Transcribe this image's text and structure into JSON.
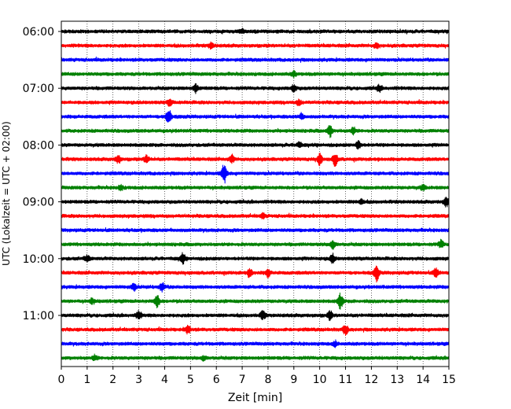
{
  "chart_data": {
    "type": "line",
    "title": "",
    "xlabel": "Zeit  [min]",
    "ylabel": "UTC (Lokalzeit = UTC + 02:00)",
    "xlim": [
      0,
      15
    ],
    "xticks": [
      0,
      1,
      2,
      3,
      4,
      5,
      6,
      7,
      8,
      9,
      10,
      11,
      12,
      13,
      14,
      15
    ],
    "grid": "vertical dotted lines at every minute",
    "legend": "none",
    "time_labels": [
      "06:00",
      "07:00",
      "08:00",
      "09:00",
      "10:00",
      "11:00"
    ],
    "trace_colors": [
      "#000000",
      "#ff0000",
      "#0000ff",
      "#008000"
    ],
    "trace_interval_minutes": 15,
    "series": [
      {
        "start": "06:00",
        "color": "#000000",
        "events": [
          {
            "x": 7.0,
            "amp": 2.5
          }
        ]
      },
      {
        "start": "06:15",
        "color": "#ff0000",
        "events": [
          {
            "x": 5.8,
            "amp": 3.5
          },
          {
            "x": 12.2,
            "amp": 3.0
          }
        ]
      },
      {
        "start": "06:30",
        "color": "#0000ff",
        "events": []
      },
      {
        "start": "06:45",
        "color": "#008000",
        "events": [
          {
            "x": 9.0,
            "amp": 3.0
          }
        ]
      },
      {
        "start": "07:00",
        "color": "#000000",
        "events": [
          {
            "x": 5.2,
            "amp": 5.0
          },
          {
            "x": 9.0,
            "amp": 4.0
          },
          {
            "x": 12.3,
            "amp": 3.5
          }
        ]
      },
      {
        "start": "07:15",
        "color": "#ff0000",
        "events": [
          {
            "x": 4.2,
            "amp": 3.5
          },
          {
            "x": 9.2,
            "amp": 3.0
          }
        ]
      },
      {
        "start": "07:30",
        "color": "#0000ff",
        "events": [
          {
            "x": 4.15,
            "amp": 10.0
          },
          {
            "x": 9.3,
            "amp": 3.0
          }
        ]
      },
      {
        "start": "07:45",
        "color": "#008000",
        "events": [
          {
            "x": 10.4,
            "amp": 7.0
          },
          {
            "x": 11.3,
            "amp": 4.0
          }
        ]
      },
      {
        "start": "08:00",
        "color": "#000000",
        "events": [
          {
            "x": 11.5,
            "amp": 5.5
          },
          {
            "x": 9.2,
            "amp": 3.0
          }
        ]
      },
      {
        "start": "08:15",
        "color": "#ff0000",
        "events": [
          {
            "x": 2.2,
            "amp": 4.5
          },
          {
            "x": 3.3,
            "amp": 4.5
          },
          {
            "x": 6.6,
            "amp": 4.5
          },
          {
            "x": 10.0,
            "amp": 7.0
          },
          {
            "x": 10.6,
            "amp": 8.0
          }
        ]
      },
      {
        "start": "08:30",
        "color": "#0000ff",
        "events": [
          {
            "x": 6.3,
            "amp": 12.0
          }
        ]
      },
      {
        "start": "08:45",
        "color": "#008000",
        "events": [
          {
            "x": 2.3,
            "amp": 3.0
          },
          {
            "x": 14.0,
            "amp": 3.0
          }
        ]
      },
      {
        "start": "09:00",
        "color": "#000000",
        "events": [
          {
            "x": 11.6,
            "amp": 3.0
          },
          {
            "x": 14.9,
            "amp": 6.0
          }
        ]
      },
      {
        "start": "09:15",
        "color": "#ff0000",
        "events": [
          {
            "x": 7.8,
            "amp": 3.0
          }
        ]
      },
      {
        "start": "09:30",
        "color": "#0000ff",
        "events": []
      },
      {
        "start": "09:45",
        "color": "#008000",
        "events": [
          {
            "x": 10.5,
            "amp": 5.0
          },
          {
            "x": 14.7,
            "amp": 4.5
          }
        ]
      },
      {
        "start": "10:00",
        "color": "#000000",
        "events": [
          {
            "x": 1.0,
            "amp": 4.0
          },
          {
            "x": 4.7,
            "amp": 6.0
          },
          {
            "x": 10.5,
            "amp": 5.0
          }
        ]
      },
      {
        "start": "10:15",
        "color": "#ff0000",
        "events": [
          {
            "x": 7.3,
            "amp": 5.0
          },
          {
            "x": 8.0,
            "amp": 4.5
          },
          {
            "x": 12.2,
            "amp": 10.0
          },
          {
            "x": 14.5,
            "amp": 5.5
          }
        ]
      },
      {
        "start": "10:30",
        "color": "#0000ff",
        "events": [
          {
            "x": 2.8,
            "amp": 4.5
          },
          {
            "x": 3.9,
            "amp": 5.5
          }
        ]
      },
      {
        "start": "10:45",
        "color": "#008000",
        "events": [
          {
            "x": 3.7,
            "amp": 8.0
          },
          {
            "x": 10.8,
            "amp": 10.0
          },
          {
            "x": 1.2,
            "amp": 3.0
          }
        ]
      },
      {
        "start": "11:00",
        "color": "#000000",
        "events": [
          {
            "x": 3.0,
            "amp": 5.0
          },
          {
            "x": 7.8,
            "amp": 5.5
          },
          {
            "x": 10.4,
            "amp": 5.0
          }
        ]
      },
      {
        "start": "11:15",
        "color": "#ff0000",
        "events": [
          {
            "x": 4.9,
            "amp": 5.5
          },
          {
            "x": 11.0,
            "amp": 6.0
          }
        ]
      },
      {
        "start": "11:30",
        "color": "#0000ff",
        "events": [
          {
            "x": 10.6,
            "amp": 3.0
          }
        ]
      },
      {
        "start": "11:45",
        "color": "#008000",
        "events": [
          {
            "x": 1.3,
            "amp": 3.0
          },
          {
            "x": 5.5,
            "amp": 2.5
          }
        ]
      }
    ]
  }
}
